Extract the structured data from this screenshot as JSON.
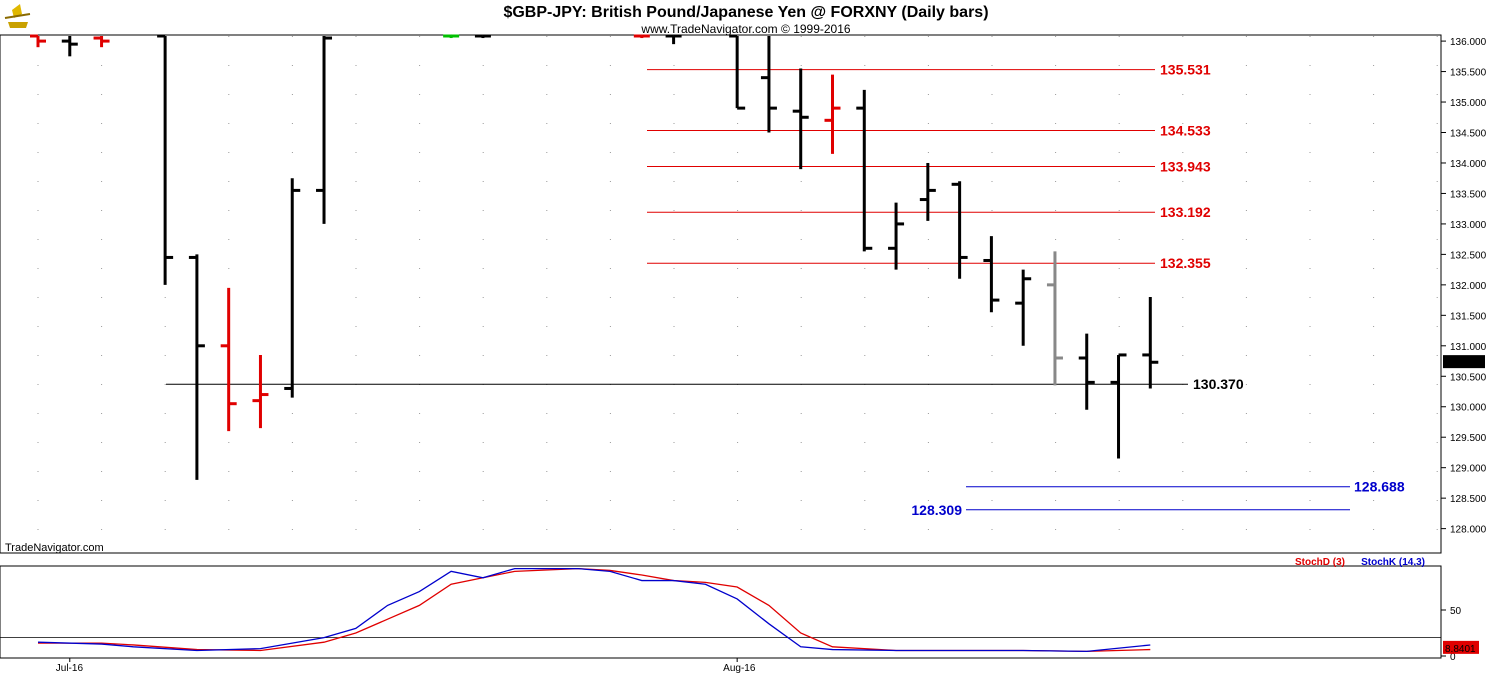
{
  "header": {
    "title": "$GBP-JPY:  British Pound/Japanese Yen @ FORXNY  (Daily bars)",
    "copyright": "www.TradeNavigator.com © 1999-2016"
  },
  "watermark": "TradeNavigator.com",
  "chart_data": [
    {
      "type": "ohlc",
      "title": "$GBP-JPY:  British Pound/Japanese Yen @ FORXNY  (Daily bars)",
      "ylim": [
        127.6,
        136.1
      ],
      "y_ticks": [
        "136.000",
        "135.500",
        "135.000",
        "134.500",
        "134.000",
        "133.500",
        "133.000",
        "132.500",
        "132.000",
        "131.500",
        "131.000",
        "130.500",
        "130.000",
        "129.500",
        "129.000",
        "128.500",
        "128.000"
      ],
      "x_labels": [
        {
          "label": "Jul-16",
          "bar": 1
        },
        {
          "label": "Aug-16",
          "bar": 22
        }
      ],
      "last_price": "130.732",
      "bars": [
        {
          "i": 0,
          "o": 136.1,
          "h": 136.1,
          "l": 135.9,
          "c": 136.0,
          "color": "#e00000"
        },
        {
          "i": 1,
          "o": 136.0,
          "h": 136.1,
          "l": 135.75,
          "c": 135.95,
          "color": "#000000"
        },
        {
          "i": 2,
          "o": 136.05,
          "h": 136.1,
          "l": 135.9,
          "c": 136.0,
          "color": "#e00000"
        },
        {
          "i": 4,
          "o": 136.1,
          "h": 136.1,
          "l": 132.0,
          "c": 132.45,
          "color": "#000000"
        },
        {
          "i": 5,
          "o": 132.45,
          "h": 132.5,
          "l": 128.8,
          "c": 131.0,
          "color": "#000000"
        },
        {
          "i": 6,
          "o": 131.0,
          "h": 131.95,
          "l": 129.6,
          "c": 130.05,
          "color": "#e00000"
        },
        {
          "i": 7,
          "o": 130.1,
          "h": 130.85,
          "l": 129.65,
          "c": 130.2,
          "color": "#e00000"
        },
        {
          "i": 8,
          "o": 130.3,
          "h": 133.75,
          "l": 130.15,
          "c": 133.55,
          "color": "#000000"
        },
        {
          "i": 9,
          "o": 133.55,
          "h": 136.1,
          "l": 133.0,
          "c": 136.05,
          "color": "#000000"
        },
        {
          "i": 13,
          "o": 136.1,
          "h": 136.1,
          "l": 136.05,
          "c": 136.1,
          "color": "#00c000"
        },
        {
          "i": 14,
          "o": 136.1,
          "h": 136.1,
          "l": 136.05,
          "c": 136.1,
          "color": "#000000"
        },
        {
          "i": 19,
          "o": 136.1,
          "h": 136.1,
          "l": 136.05,
          "c": 136.1,
          "color": "#e00000"
        },
        {
          "i": 20,
          "o": 136.1,
          "h": 136.1,
          "l": 135.95,
          "c": 136.1,
          "color": "#000000"
        },
        {
          "i": 22,
          "o": 136.1,
          "h": 136.15,
          "l": 134.9,
          "c": 134.9,
          "color": "#000000"
        },
        {
          "i": 23,
          "o": 135.4,
          "h": 136.1,
          "l": 134.5,
          "c": 134.9,
          "color": "#000000"
        },
        {
          "i": 24,
          "o": 134.85,
          "h": 135.55,
          "l": 133.9,
          "c": 134.75,
          "color": "#000000"
        },
        {
          "i": 25,
          "o": 134.7,
          "h": 135.45,
          "l": 134.15,
          "c": 134.9,
          "color": "#e00000"
        },
        {
          "i": 26,
          "o": 134.9,
          "h": 135.2,
          "l": 132.55,
          "c": 132.6,
          "color": "#000000"
        },
        {
          "i": 27,
          "o": 132.6,
          "h": 133.35,
          "l": 132.25,
          "c": 133.0,
          "color": "#000000"
        },
        {
          "i": 28,
          "o": 133.4,
          "h": 134.0,
          "l": 133.05,
          "c": 133.55,
          "color": "#000000"
        },
        {
          "i": 29,
          "o": 133.65,
          "h": 133.7,
          "l": 132.1,
          "c": 132.45,
          "color": "#000000"
        },
        {
          "i": 30,
          "o": 132.4,
          "h": 132.8,
          "l": 131.55,
          "c": 131.75,
          "color": "#000000"
        },
        {
          "i": 31,
          "o": 131.7,
          "h": 132.25,
          "l": 131.0,
          "c": 132.1,
          "color": "#000000"
        },
        {
          "i": 32,
          "o": 132.0,
          "h": 132.55,
          "l": 130.35,
          "c": 130.8,
          "color": "#888888"
        },
        {
          "i": 33,
          "o": 130.8,
          "h": 131.2,
          "l": 129.95,
          "c": 130.4,
          "color": "#000000"
        },
        {
          "i": 34,
          "o": 130.4,
          "h": 130.85,
          "l": 129.15,
          "c": 130.85,
          "color": "#000000"
        },
        {
          "i": 35,
          "o": 130.85,
          "h": 131.8,
          "l": 130.3,
          "c": 130.73,
          "color": "#000000"
        }
      ],
      "fib_levels": [
        {
          "label": "135.531",
          "value": 135.531,
          "color": "#e00000"
        },
        {
          "label": "134.533",
          "value": 134.533,
          "color": "#e00000"
        },
        {
          "label": "133.943",
          "value": 133.943,
          "color": "#e00000"
        },
        {
          "label": "133.192",
          "value": 133.192,
          "color": "#e00000"
        },
        {
          "label": "132.355",
          "value": 132.355,
          "color": "#e00000"
        }
      ],
      "support": {
        "label": "130.370",
        "value": 130.37,
        "color": "#000000"
      },
      "targets": [
        {
          "label": "128.688",
          "value": 128.688,
          "color": "#0000cc"
        },
        {
          "label": "128.309",
          "value": 128.309,
          "color": "#0000cc"
        }
      ]
    },
    {
      "type": "line",
      "title": "",
      "ylim": [
        0,
        100
      ],
      "y_ticks": [
        "50",
        "0"
      ],
      "reference_line": 20,
      "last_value": "8.8401",
      "series": [
        {
          "name": "StochK (14,3)",
          "color": "#0000cc",
          "points": [
            [
              0,
              15
            ],
            [
              2,
              13
            ],
            [
              3,
              10
            ],
            [
              5,
              6
            ],
            [
              7,
              8
            ],
            [
              9,
              20
            ],
            [
              10,
              30
            ],
            [
              11,
              55
            ],
            [
              12,
              70
            ],
            [
              13,
              92
            ],
            [
              14,
              85
            ],
            [
              15,
              95
            ],
            [
              17,
              95
            ],
            [
              18,
              92
            ],
            [
              19,
              82
            ],
            [
              20,
              82
            ],
            [
              21,
              78
            ],
            [
              22,
              62
            ],
            [
              23,
              35
            ],
            [
              24,
              10
            ],
            [
              25,
              7
            ],
            [
              27,
              6
            ],
            [
              29,
              6
            ],
            [
              31,
              6
            ],
            [
              33,
              5
            ],
            [
              35,
              12
            ]
          ]
        },
        {
          "name": "StochD (3)",
          "color": "#e00000",
          "points": [
            [
              0,
              14
            ],
            [
              2,
              14
            ],
            [
              3,
              12
            ],
            [
              5,
              7
            ],
            [
              7,
              6
            ],
            [
              9,
              15
            ],
            [
              10,
              25
            ],
            [
              11,
              40
            ],
            [
              12,
              55
            ],
            [
              13,
              78
            ],
            [
              14,
              85
            ],
            [
              15,
              92
            ],
            [
              17,
              95
            ],
            [
              18,
              93
            ],
            [
              19,
              88
            ],
            [
              20,
              82
            ],
            [
              21,
              80
            ],
            [
              22,
              75
            ],
            [
              23,
              55
            ],
            [
              24,
              25
            ],
            [
              25,
              10
            ],
            [
              27,
              6
            ],
            [
              29,
              6
            ],
            [
              31,
              6
            ],
            [
              33,
              5
            ],
            [
              35,
              7
            ]
          ]
        }
      ]
    }
  ]
}
